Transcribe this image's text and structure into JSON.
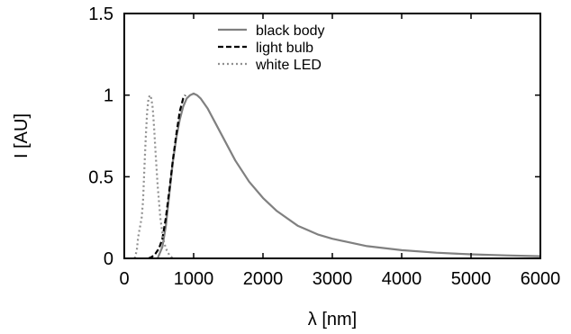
{
  "chart_data": {
    "type": "line",
    "title": "",
    "xlabel": "λ [nm]",
    "ylabel": "I [AU]",
    "xlim": [
      0,
      6000
    ],
    "ylim": [
      0,
      1.5
    ],
    "xticks": [
      0,
      1000,
      2000,
      3000,
      4000,
      5000,
      6000
    ],
    "yticks": [
      0,
      0.5,
      1,
      1.5
    ],
    "ytick_labels": [
      "0",
      "0.5",
      "1",
      "1.5"
    ],
    "grid": false,
    "legend_position": "top-center",
    "series": [
      {
        "name": "black body",
        "color": "#808080",
        "style": "solid",
        "x": [
          480,
          550,
          600,
          650,
          700,
          750,
          800,
          850,
          900,
          950,
          1000,
          1050,
          1100,
          1200,
          1300,
          1400,
          1500,
          1600,
          1800,
          2000,
          2200,
          2500,
          2800,
          3000,
          3500,
          4000,
          4500,
          5000,
          5500,
          6000
        ],
        "y": [
          0,
          0.07,
          0.2,
          0.4,
          0.59,
          0.74,
          0.85,
          0.93,
          0.98,
          1.0,
          1.01,
          1.0,
          0.98,
          0.92,
          0.84,
          0.76,
          0.68,
          0.6,
          0.47,
          0.37,
          0.29,
          0.2,
          0.145,
          0.12,
          0.075,
          0.05,
          0.035,
          0.025,
          0.018,
          0.013
        ]
      },
      {
        "name": "light bulb",
        "color": "#000000",
        "style": "dashed",
        "x": [
          350,
          400,
          450,
          500,
          550,
          600,
          650,
          700,
          750,
          800,
          850,
          880
        ],
        "y": [
          0,
          0.01,
          0.03,
          0.06,
          0.12,
          0.25,
          0.42,
          0.6,
          0.76,
          0.9,
          0.98,
          1.0
        ]
      },
      {
        "name": "white LED",
        "color": "#909090",
        "style": "dotted",
        "x": [
          150,
          180,
          200,
          230,
          250,
          270,
          290,
          310,
          330,
          350,
          370,
          390,
          410,
          430,
          450,
          480,
          520,
          560,
          600,
          650,
          700
        ],
        "y": [
          0,
          0.05,
          0.13,
          0.2,
          0.25,
          0.35,
          0.55,
          0.75,
          0.9,
          0.98,
          1.0,
          0.98,
          0.92,
          0.8,
          0.65,
          0.45,
          0.25,
          0.12,
          0.06,
          0.02,
          0
        ]
      }
    ]
  }
}
